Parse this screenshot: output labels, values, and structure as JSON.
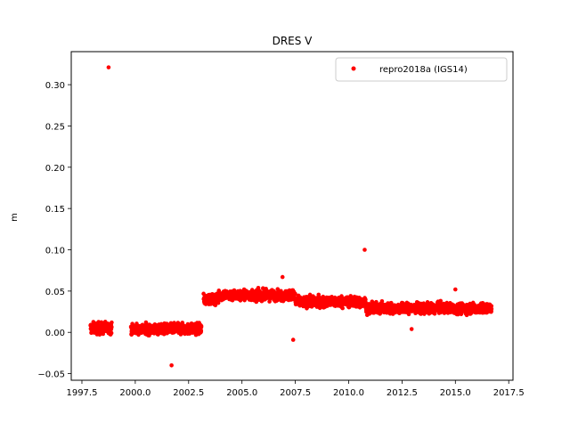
{
  "chart_data": {
    "type": "scatter",
    "title": "DRES V",
    "xlabel": "",
    "ylabel": "m",
    "xlim": [
      1997.0,
      2017.7
    ],
    "ylim": [
      -0.058,
      0.34
    ],
    "x_ticks": [
      1997.5,
      2000.0,
      2002.5,
      2005.0,
      2007.5,
      2010.0,
      2012.5,
      2015.0,
      2017.5
    ],
    "x_tick_labels": [
      "1997.5",
      "2000.0",
      "2002.5",
      "2005.0",
      "2007.5",
      "2010.0",
      "2012.5",
      "2015.0",
      "2017.5"
    ],
    "y_ticks": [
      -0.05,
      0.0,
      0.05,
      0.1,
      0.15,
      0.2,
      0.25,
      0.3
    ],
    "y_tick_labels": [
      "−0.05",
      "0.00",
      "0.05",
      "0.10",
      "0.15",
      "0.20",
      "0.25",
      "0.30"
    ],
    "legend_position": "top-right",
    "series": [
      {
        "name": "repro2018a (IGS14)",
        "color": "#ff0000",
        "marker": "circle",
        "segments": [
          {
            "x_range": [
              1997.9,
              1998.9
            ],
            "y_mean": 0.005,
            "y_spread": 0.012
          },
          {
            "x_range": [
              1999.8,
              2003.1
            ],
            "y_mean": 0.004,
            "y_spread": 0.011
          },
          {
            "x_range": [
              2003.2,
              2003.9
            ],
            "y_mean": 0.04,
            "y_spread": 0.011
          },
          {
            "x_range": [
              2003.9,
              2007.5
            ],
            "y_mean": 0.045,
            "y_spread": 0.011
          },
          {
            "x_range": [
              2007.5,
              2010.8
            ],
            "y_mean": 0.037,
            "y_spread": 0.011
          },
          {
            "x_range": [
              2010.8,
              2016.7
            ],
            "y_mean": 0.029,
            "y_spread": 0.011
          }
        ],
        "outliers": [
          {
            "x": 1998.75,
            "y": 0.321
          },
          {
            "x": 2001.7,
            "y": -0.04
          },
          {
            "x": 2007.4,
            "y": -0.009
          },
          {
            "x": 2010.75,
            "y": 0.1
          },
          {
            "x": 2006.9,
            "y": 0.067
          },
          {
            "x": 2012.95,
            "y": 0.004
          },
          {
            "x": 2015.0,
            "y": 0.052
          }
        ]
      }
    ]
  }
}
